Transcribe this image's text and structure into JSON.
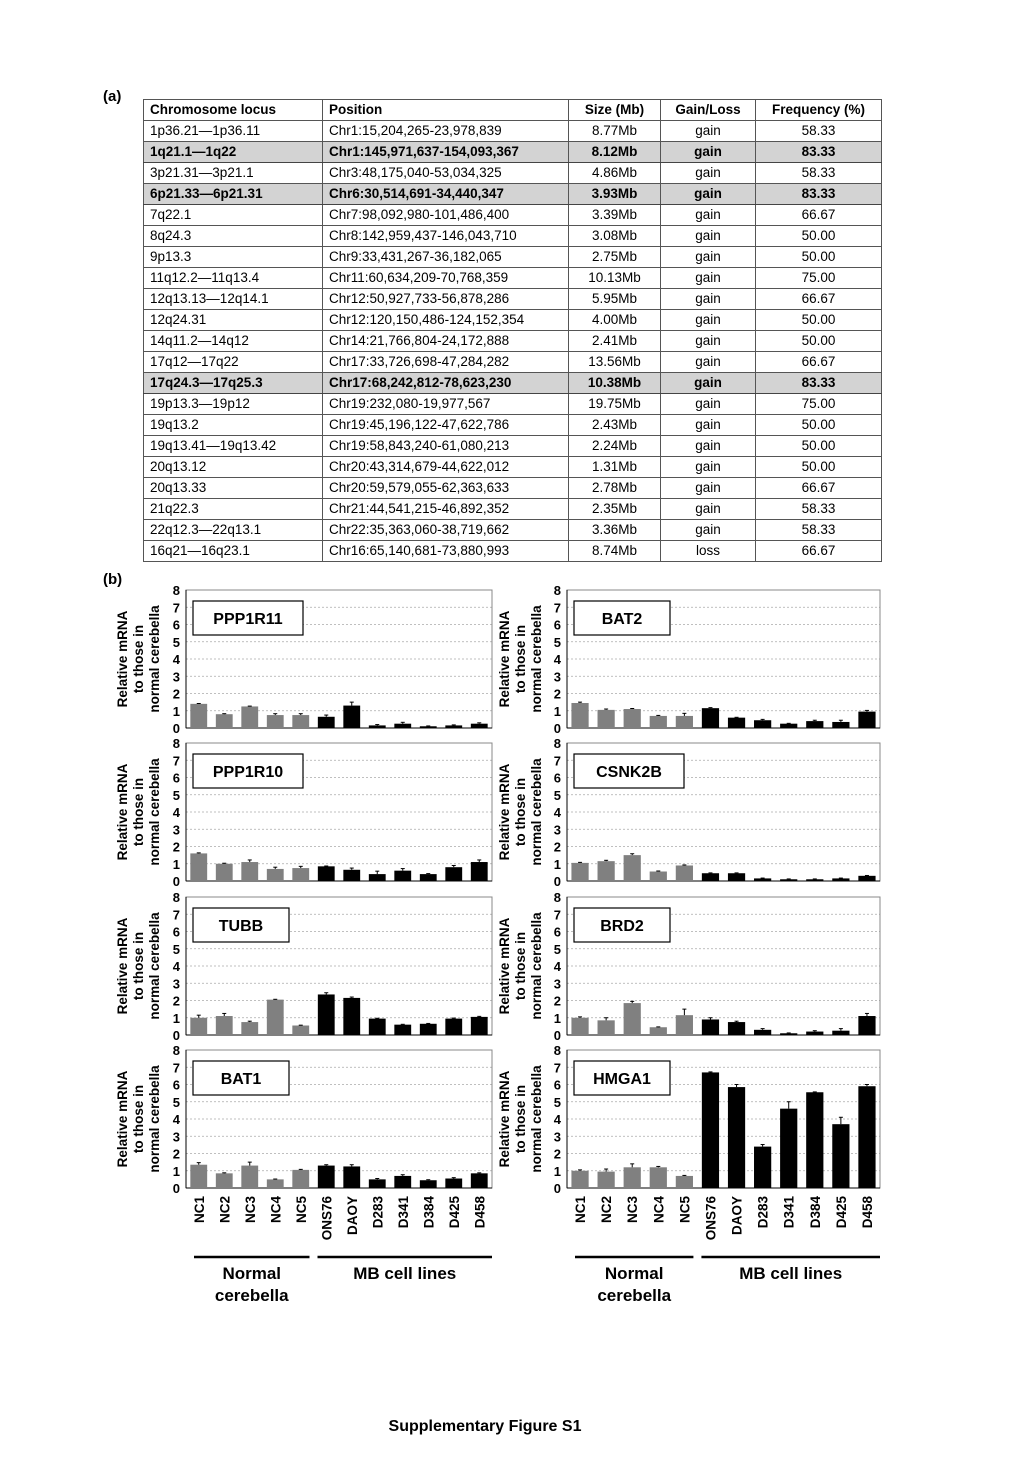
{
  "panel_a_label": "(a)",
  "panel_b_label": "(b)",
  "table": {
    "headers": [
      "Chromosome locus",
      "Position",
      "Size (Mb)",
      "Gain/Loss",
      "Frequency (%)"
    ],
    "rows": [
      {
        "cells": [
          "1p36.21—1p36.11",
          "Chr1:15,204,265-23,978,839",
          "8.77Mb",
          "gain",
          "58.33"
        ],
        "highlighted": false
      },
      {
        "cells": [
          "1q21.1—1q22",
          "Chr1:145,971,637-154,093,367",
          "8.12Mb",
          "gain",
          "83.33"
        ],
        "highlighted": true
      },
      {
        "cells": [
          "3p21.31—3p21.1",
          "Chr3:48,175,040-53,034,325",
          "4.86Mb",
          "gain",
          "58.33"
        ],
        "highlighted": false
      },
      {
        "cells": [
          "6p21.33—6p21.31",
          "Chr6:30,514,691-34,440,347",
          "3.93Mb",
          "gain",
          "83.33"
        ],
        "highlighted": true
      },
      {
        "cells": [
          "7q22.1",
          "Chr7:98,092,980-101,486,400",
          "3.39Mb",
          "gain",
          "66.67"
        ],
        "highlighted": false
      },
      {
        "cells": [
          "8q24.3",
          "Chr8:142,959,437-146,043,710",
          "3.08Mb",
          "gain",
          "50.00"
        ],
        "highlighted": false
      },
      {
        "cells": [
          "9p13.3",
          "Chr9:33,431,267-36,182,065",
          "2.75Mb",
          "gain",
          "50.00"
        ],
        "highlighted": false
      },
      {
        "cells": [
          "11q12.2—11q13.4",
          "Chr11:60,634,209-70,768,359",
          "10.13Mb",
          "gain",
          "75.00"
        ],
        "highlighted": false
      },
      {
        "cells": [
          "12q13.13—12q14.1",
          "Chr12:50,927,733-56,878,286",
          "5.95Mb",
          "gain",
          "66.67"
        ],
        "highlighted": false
      },
      {
        "cells": [
          "12q24.31",
          "Chr12:120,150,486-124,152,354",
          "4.00Mb",
          "gain",
          "50.00"
        ],
        "highlighted": false
      },
      {
        "cells": [
          "14q11.2—14q12",
          "Chr14:21,766,804-24,172,888",
          "2.41Mb",
          "gain",
          "50.00"
        ],
        "highlighted": false
      },
      {
        "cells": [
          "17q12—17q22",
          "Chr17:33,726,698-47,284,282",
          "13.56Mb",
          "gain",
          "66.67"
        ],
        "highlighted": false
      },
      {
        "cells": [
          "17q24.3—17q25.3",
          "Chr17:68,242,812-78,623,230",
          "10.38Mb",
          "gain",
          "83.33"
        ],
        "highlighted": true
      },
      {
        "cells": [
          "19p13.3—19p12",
          "Chr19:232,080-19,977,567",
          "19.75Mb",
          "gain",
          "75.00"
        ],
        "highlighted": false
      },
      {
        "cells": [
          "19q13.2",
          "Chr19:45,196,122-47,622,786",
          "2.43Mb",
          "gain",
          "50.00"
        ],
        "highlighted": false
      },
      {
        "cells": [
          "19q13.41—19q13.42",
          "Chr19:58,843,240-61,080,213",
          "2.24Mb",
          "gain",
          "50.00"
        ],
        "highlighted": false
      },
      {
        "cells": [
          "20q13.12",
          "Chr20:43,314,679-44,622,012",
          "1.31Mb",
          "gain",
          "50.00"
        ],
        "highlighted": false
      },
      {
        "cells": [
          "20q13.33",
          "Chr20:59,579,055-62,363,633",
          "2.78Mb",
          "gain",
          "66.67"
        ],
        "highlighted": false
      },
      {
        "cells": [
          "21q22.3",
          "Chr21:44,541,215-46,892,352",
          "2.35Mb",
          "gain",
          "58.33"
        ],
        "highlighted": false
      },
      {
        "cells": [
          "22q12.3—22q13.1",
          "Chr22:35,363,060-38,719,662",
          "3.36Mb",
          "gain",
          "58.33"
        ],
        "highlighted": false
      },
      {
        "cells": [
          "16q21—16q23.1",
          "Chr16:65,140,681-73,880,993",
          "8.74Mb",
          "loss",
          "66.67"
        ],
        "highlighted": false
      }
    ],
    "highlight_color": "#d3d3d3"
  },
  "chart_common": {
    "categories": [
      "NC1",
      "NC2",
      "NC3",
      "NC4",
      "NC5",
      "ONS76",
      "DAOY",
      "D283",
      "D341",
      "D384",
      "D425",
      "D458"
    ],
    "ylabel_lines": [
      "Relative mRNA",
      "to those in",
      "normal cerebella"
    ],
    "yticks": [
      "0",
      "1",
      "2",
      "3",
      "4",
      "5",
      "6",
      "7",
      "8"
    ],
    "ylim": [
      0,
      8
    ],
    "groups": [
      {
        "label_lines": [
          "Normal",
          "cerebella"
        ],
        "categories": [
          "NC1",
          "NC2",
          "NC3",
          "NC4",
          "NC5"
        ],
        "color": "#808080"
      },
      {
        "label_lines": [
          "MB cell lines"
        ],
        "categories": [
          "ONS76",
          "DAOY",
          "D283",
          "D341",
          "D384",
          "D425",
          "D458"
        ],
        "color": "#000000"
      }
    ],
    "grid": true
  },
  "chart_data": [
    {
      "type": "bar",
      "title": "PPP1R11",
      "ylim": [
        0,
        8
      ],
      "values": [
        1.4,
        0.8,
        1.25,
        0.75,
        0.75,
        0.65,
        1.3,
        0.15,
        0.25,
        0.1,
        0.15,
        0.25
      ],
      "errors": [
        0.02,
        0.03,
        0.02,
        0.08,
        0.08,
        0.1,
        0.2,
        0.05,
        0.08,
        0.02,
        0.03,
        0.05
      ]
    },
    {
      "type": "bar",
      "title": "BAT2",
      "ylim": [
        0,
        8
      ],
      "values": [
        1.45,
        1.05,
        1.1,
        0.7,
        0.7,
        1.15,
        0.6,
        0.45,
        0.25,
        0.4,
        0.35,
        0.95
      ],
      "errors": [
        0.05,
        0.05,
        0.03,
        0.03,
        0.15,
        0.03,
        0.02,
        0.05,
        0.02,
        0.05,
        0.1,
        0.07
      ]
    },
    {
      "type": "bar",
      "title": "PPP1R10",
      "ylim": [
        0,
        8
      ],
      "values": [
        1.6,
        1.0,
        1.1,
        0.7,
        0.75,
        0.85,
        0.65,
        0.4,
        0.6,
        0.4,
        0.8,
        1.1
      ],
      "errors": [
        0.03,
        0.03,
        0.12,
        0.1,
        0.1,
        0.02,
        0.1,
        0.17,
        0.12,
        0.03,
        0.1,
        0.12
      ]
    },
    {
      "type": "bar",
      "title": "CSNK2B",
      "ylim": [
        0,
        8
      ],
      "values": [
        1.05,
        1.15,
        1.5,
        0.55,
        0.9,
        0.45,
        0.45,
        0.15,
        0.1,
        0.1,
        0.15,
        0.3
      ],
      "errors": [
        0.03,
        0.05,
        0.08,
        0.03,
        0.03,
        0.02,
        0.02,
        0.02,
        0.02,
        0.02,
        0.02,
        0.02
      ]
    },
    {
      "type": "bar",
      "title": "TUBB",
      "ylim": [
        0,
        8
      ],
      "values": [
        1.0,
        1.1,
        0.75,
        2.05,
        0.55,
        2.35,
        2.15,
        0.95,
        0.6,
        0.65,
        0.95,
        1.05
      ],
      "errors": [
        0.15,
        0.15,
        0.05,
        0.02,
        0.02,
        0.1,
        0.05,
        0.02,
        0.02,
        0.02,
        0.03,
        0.03
      ]
    },
    {
      "type": "bar",
      "title": "BRD2",
      "ylim": [
        0,
        8
      ],
      "values": [
        1.0,
        0.85,
        1.85,
        0.45,
        1.15,
        0.9,
        0.75,
        0.3,
        0.1,
        0.2,
        0.25,
        1.1
      ],
      "errors": [
        0.05,
        0.15,
        0.1,
        0.02,
        0.35,
        0.1,
        0.05,
        0.07,
        0.02,
        0.05,
        0.12,
        0.15
      ]
    },
    {
      "type": "bar",
      "title": "BAT1",
      "ylim": [
        0,
        8
      ],
      "values": [
        1.35,
        0.85,
        1.3,
        0.5,
        1.05,
        1.3,
        1.25,
        0.5,
        0.7,
        0.45,
        0.55,
        0.85
      ],
      "errors": [
        0.12,
        0.03,
        0.2,
        0.02,
        0.03,
        0.05,
        0.1,
        0.05,
        0.07,
        0.03,
        0.05,
        0.03
      ]
    },
    {
      "type": "bar",
      "title": "HMGA1",
      "ylim": [
        0,
        8
      ],
      "values": [
        1.0,
        0.95,
        1.2,
        1.2,
        0.7,
        6.7,
        5.85,
        2.4,
        4.6,
        5.55,
        3.7,
        5.9
      ],
      "errors": [
        0.05,
        0.15,
        0.2,
        0.05,
        0.03,
        0.03,
        0.15,
        0.12,
        0.4,
        0.02,
        0.4,
        0.1
      ]
    }
  ],
  "caption": "Supplementary Figure S1"
}
